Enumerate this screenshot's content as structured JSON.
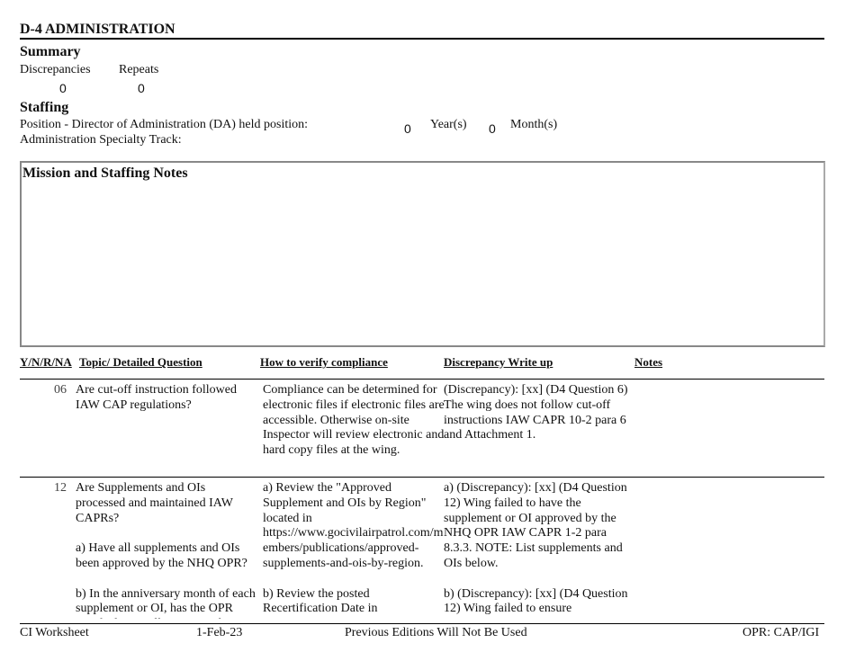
{
  "header": {
    "title": "D-4 ADMINISTRATION"
  },
  "summary": {
    "title": "Summary",
    "labels": [
      "Discrepancies",
      "Repeats"
    ],
    "values": [
      "0",
      "0"
    ]
  },
  "staffing": {
    "title": "Staffing",
    "position_label": "Position - Director of Administration (DA) held position:",
    "years": "0",
    "years_label": "Year(s)",
    "months": "0",
    "months_label": "Month(s)",
    "track_label": "Administration Specialty Track:"
  },
  "notes_box": {
    "title": "Mission and Staffing Notes"
  },
  "table": {
    "headers": [
      "Y/N/R/NA",
      "Topic/ Detailed Question",
      "How to verify compliance",
      "Discrepancy Write up",
      "Notes"
    ],
    "rows": [
      {
        "number": "06",
        "question": [
          "Are cut-off instruction followed IAW CAP regulations?"
        ],
        "verify": [
          "Compliance can be determined for electronic files if electronic files are accessible. Otherwise on-site Inspector will review electronic and hard copy files at the wing."
        ],
        "discrepancy": [
          "(Discrepancy): [xx] (D4 Question 6) The wing does not follow cut-off instructions IAW CAPR 10-2 para 6 and Attachment 1."
        ]
      },
      {
        "number": "12",
        "question": [
          "Are Supplements and OIs processed and maintained IAW CAPRs?",
          "a) Have all supplements and OIs been approved by the NHQ OPR?",
          "b) In the anniversary month of each supplement or OI, has the OPR certified it is still current and"
        ],
        "verify": [
          "a) Review the \"Approved Supplement and OIs by Region\" located in https://www.gocivilairpatrol.com/members/publications/approved-supplements-and-ois-by-region.",
          "b) Review the posted Recertification Date in"
        ],
        "discrepancy": [
          "a) (Discrepancy): [xx] (D4 Question 12) Wing failed to have the supplement or OI approved by the NHQ OPR IAW CAPR 1-2 para 8.3.3. NOTE: List supplements and OIs below.",
          "b) (Discrepancy): [xx] (D4 Question 12) Wing failed to ensure"
        ]
      }
    ]
  },
  "footer": {
    "left": "CI Worksheet",
    "date": "1-Feb-23",
    "center": "Previous Editions Will Not Be Used",
    "right": "OPR: CAP/IGI"
  }
}
